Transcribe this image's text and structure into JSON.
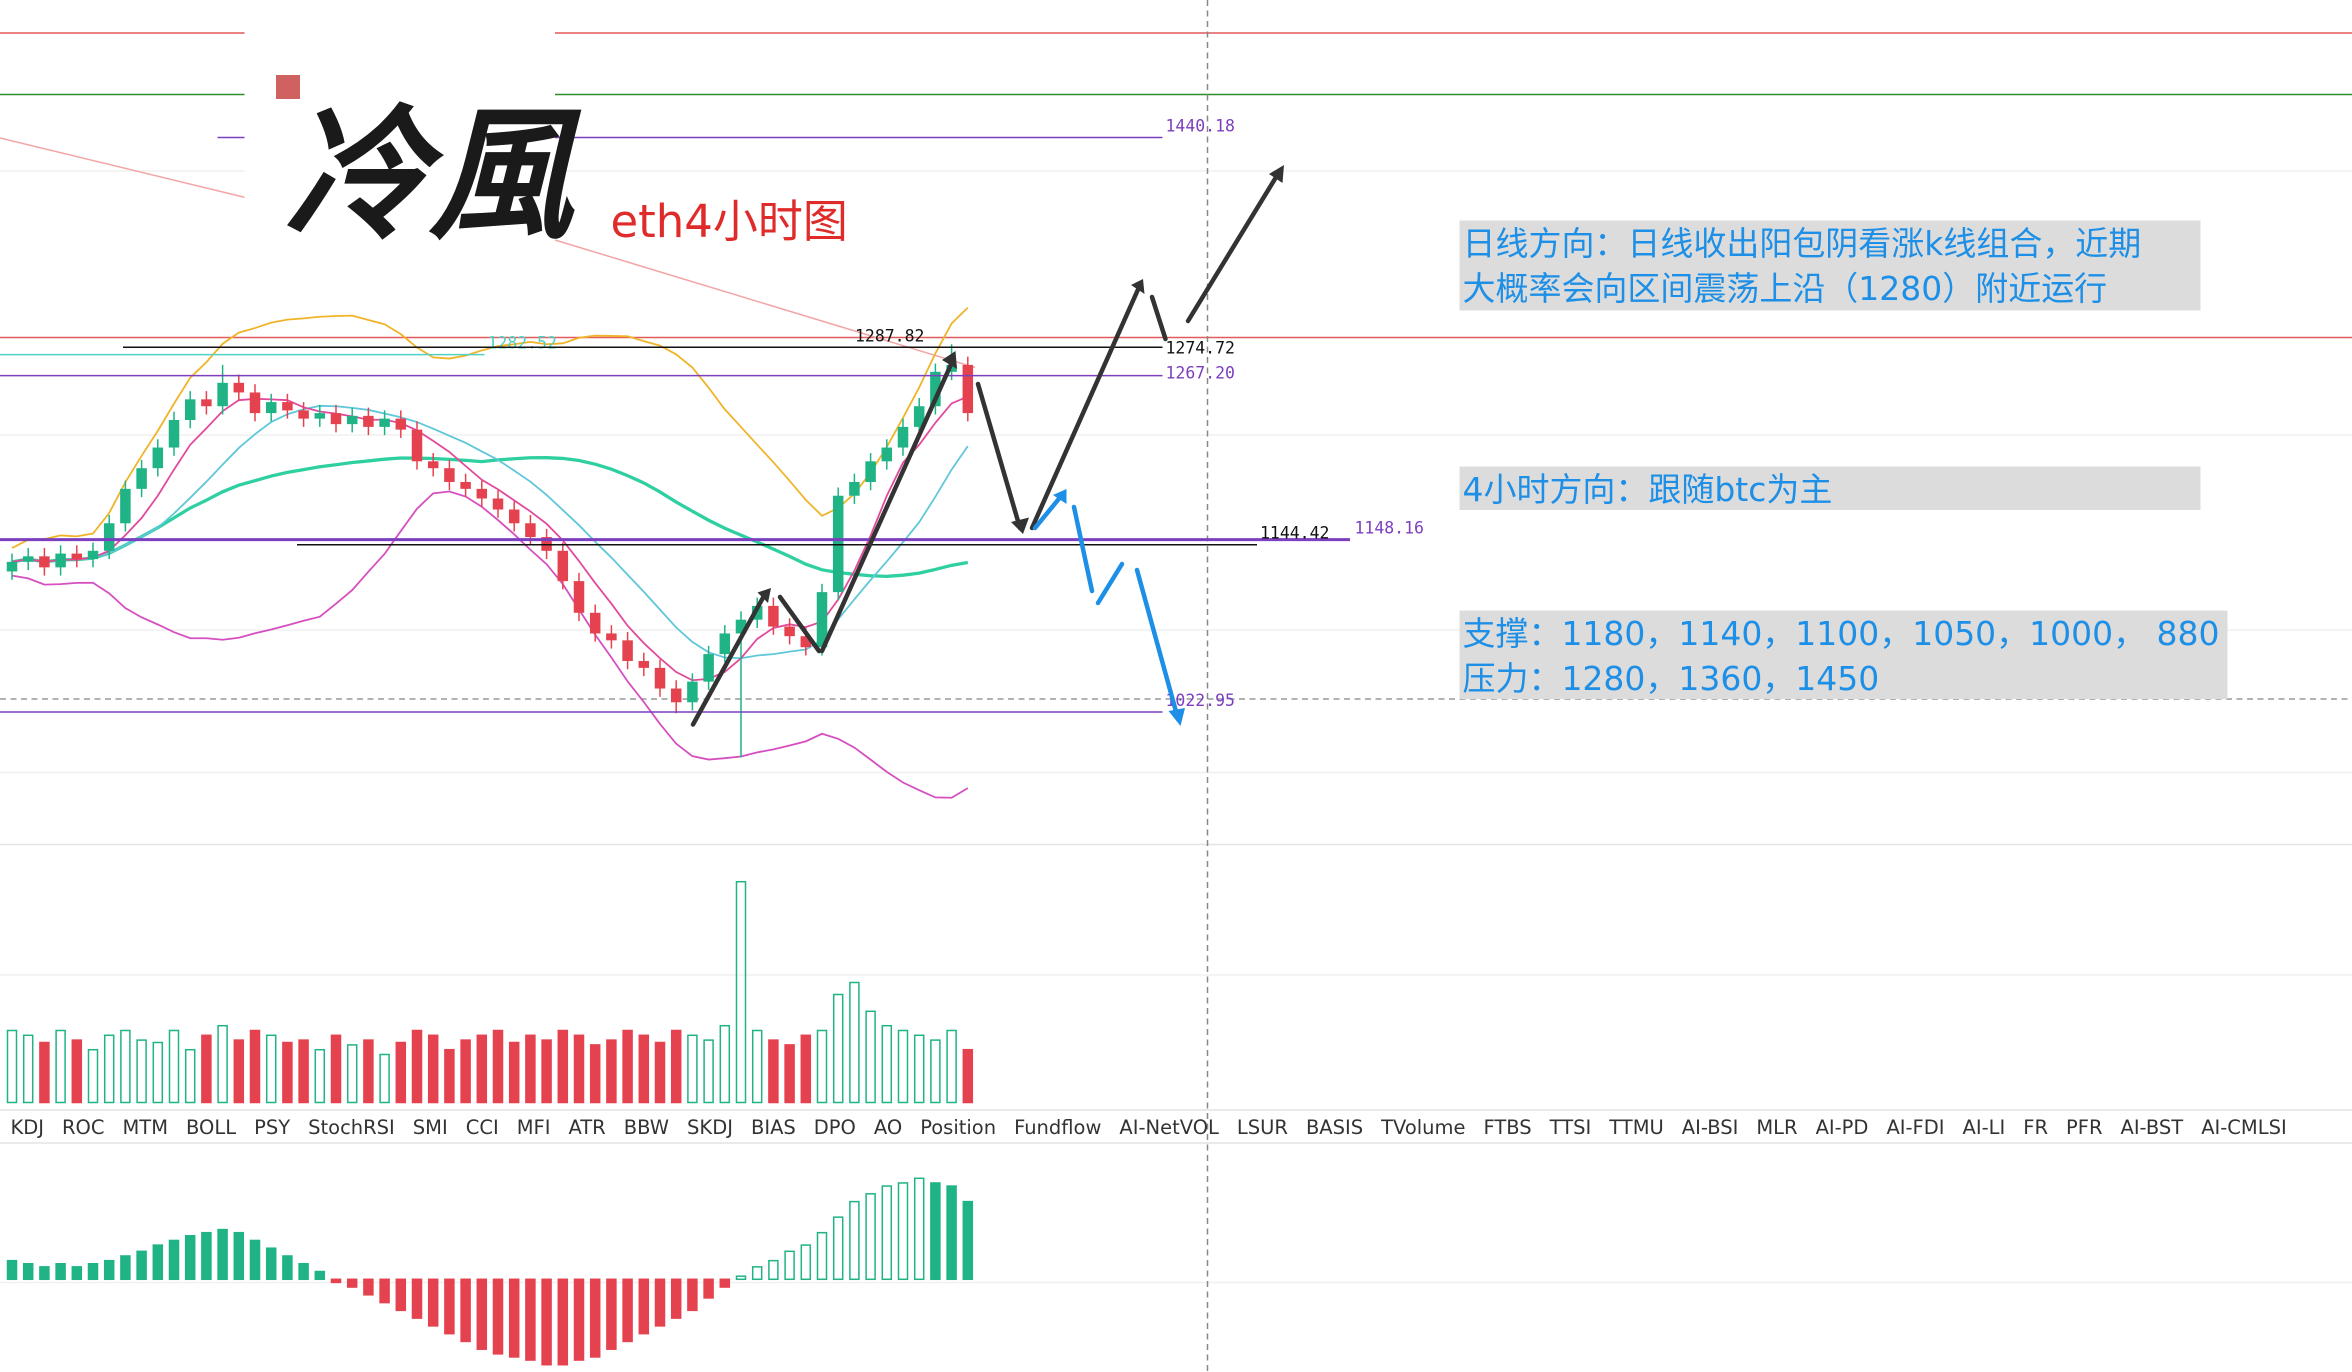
{
  "chart_data": {
    "type": "candlestick",
    "title": "eth4小时图",
    "logo": "冷風",
    "annotations": {
      "daily": [
        "日线方向：日线收出阳包阴看涨k线组合，近期",
        "大概率会向区间震荡上沿（1280）附近运行"
      ],
      "h4": "4小时方向：跟随btc为主",
      "support": "支撑：1180，1140，1100，1050，1000， 880",
      "resistance": "压力：1280，1360，1450"
    },
    "ylim": [
      930,
      1540
    ],
    "open": [
      1125,
      1132,
      1136,
      1128,
      1138,
      1134,
      1140,
      1160,
      1185,
      1200,
      1215,
      1235,
      1250,
      1245,
      1262,
      1255,
      1240,
      1248,
      1242,
      1236,
      1240,
      1232,
      1238,
      1230,
      1236,
      1228,
      1205,
      1200,
      1190,
      1185,
      1178,
      1170,
      1160,
      1150,
      1140,
      1118,
      1095,
      1080,
      1075,
      1060,
      1055,
      1040,
      1030,
      1045,
      1065,
      1080,
      1090,
      1100,
      1085,
      1078,
      1070,
      1110,
      1180,
      1190,
      1205,
      1215,
      1230,
      1245,
      1270,
      1275
    ],
    "high": [
      1138,
      1142,
      1142,
      1144,
      1144,
      1146,
      1166,
      1191,
      1206,
      1221,
      1241,
      1256,
      1256,
      1275,
      1268,
      1261,
      1254,
      1254,
      1248,
      1246,
      1246,
      1244,
      1244,
      1242,
      1242,
      1234,
      1211,
      1206,
      1196,
      1191,
      1184,
      1176,
      1166,
      1156,
      1146,
      1124,
      1101,
      1086,
      1081,
      1066,
      1061,
      1046,
      1051,
      1071,
      1086,
      1096,
      1106,
      1106,
      1091,
      1084,
      1116,
      1186,
      1196,
      1211,
      1221,
      1236,
      1251,
      1276,
      1290,
      1281
    ],
    "low": [
      1119,
      1126,
      1122,
      1122,
      1128,
      1128,
      1134,
      1154,
      1179,
      1194,
      1209,
      1229,
      1239,
      1239,
      1249,
      1234,
      1234,
      1236,
      1230,
      1230,
      1226,
      1226,
      1224,
      1224,
      1222,
      1199,
      1194,
      1184,
      1179,
      1172,
      1164,
      1154,
      1144,
      1134,
      1112,
      1089,
      1074,
      1069,
      1054,
      1049,
      1034,
      1022,
      1024,
      1039,
      1059,
      990,
      1084,
      1079,
      1072,
      1064,
      1064,
      1104,
      1174,
      1184,
      1199,
      1209,
      1224,
      1239,
      1264,
      1234
    ],
    "close": [
      1132,
      1136,
      1128,
      1138,
      1134,
      1140,
      1160,
      1185,
      1200,
      1215,
      1235,
      1250,
      1245,
      1262,
      1255,
      1240,
      1248,
      1242,
      1236,
      1240,
      1232,
      1238,
      1230,
      1236,
      1228,
      1205,
      1200,
      1190,
      1185,
      1178,
      1170,
      1160,
      1150,
      1140,
      1118,
      1095,
      1080,
      1075,
      1060,
      1055,
      1040,
      1030,
      1045,
      1065,
      1080,
      1090,
      1100,
      1085,
      1078,
      1070,
      1110,
      1180,
      1190,
      1205,
      1215,
      1230,
      1245,
      1270,
      1275,
      1240
    ],
    "volume_ylim": [
      0,
      100
    ],
    "volume": [
      30,
      28,
      25,
      30,
      26,
      22,
      28,
      30,
      26,
      25,
      30,
      22,
      28,
      32,
      26,
      30,
      28,
      25,
      26,
      22,
      28,
      24,
      26,
      20,
      25,
      30,
      28,
      22,
      26,
      28,
      30,
      25,
      28,
      26,
      30,
      28,
      24,
      26,
      30,
      28,
      25,
      30,
      28,
      26,
      32,
      92,
      30,
      26,
      24,
      28,
      30,
      45,
      50,
      38,
      32,
      30,
      28,
      26,
      30,
      22
    ],
    "macd_ylim": [
      -60,
      80
    ],
    "macd": [
      12,
      10,
      8,
      10,
      8,
      10,
      12,
      15,
      18,
      22,
      25,
      28,
      30,
      32,
      30,
      25,
      20,
      15,
      10,
      5,
      -2,
      -5,
      -10,
      -15,
      -20,
      -25,
      -30,
      -35,
      -40,
      -45,
      -48,
      -50,
      -52,
      -55,
      -55,
      -52,
      -50,
      -45,
      -40,
      -35,
      -30,
      -25,
      -20,
      -12,
      -5,
      2,
      8,
      12,
      18,
      22,
      30,
      40,
      50,
      55,
      60,
      62,
      65,
      62,
      60,
      50
    ],
    "up_color": "#1fb386",
    "down_color": "#e5424f",
    "price_labels": [
      {
        "value": 1440.18,
        "color": "#7b3fbf"
      },
      {
        "value": 1282.52,
        "color": "#4fd1c5"
      },
      {
        "value": 1287.82,
        "color": "#111111"
      },
      {
        "value": 1274.72,
        "color": "#111111"
      },
      {
        "value": {
          "value": 1267.2,
          "label": "1267.20"
        },
        "color": "#7b3fbf"
      },
      {
        "value": 1148.16,
        "color": "#7b3fbf"
      },
      {
        "value": 1144.42,
        "color": "#111111"
      },
      {
        "value": 1022.95,
        "color": "#7b3fbf"
      }
    ],
    "tabs": [
      {
        "name": "KDJ"
      },
      {
        "name": "ROC"
      },
      {
        "name": "MTM"
      },
      {
        "name": "BOLL"
      },
      {
        "name": "PSY"
      },
      {
        "name": "StochRSI"
      },
      {
        "name": "SMI"
      },
      {
        "name": "CCI"
      },
      {
        "name": "MFI"
      },
      {
        "name": "ATR"
      },
      {
        "name": "BBW"
      },
      {
        "name": "SKDJ"
      },
      {
        "name": "BIAS"
      },
      {
        "name": "DPO"
      },
      {
        "name": "AO"
      },
      {
        "name": "Position"
      },
      {
        "name": "Fundflow"
      },
      {
        "name": "AI-NetVOL",
        "muted": true
      },
      {
        "name": "LSUR"
      },
      {
        "name": "BASIS"
      },
      {
        "name": "TVolume"
      },
      {
        "name": "FTBS"
      },
      {
        "name": "TTSI"
      },
      {
        "name": "TTMU"
      },
      {
        "name": "AI-BSI",
        "muted": true
      },
      {
        "name": "MLR"
      },
      {
        "name": "AI-PD",
        "muted": true
      },
      {
        "name": "AI-FDI",
        "muted": true
      },
      {
        "name": "AI-LI",
        "muted": true
      },
      {
        "name": "FR"
      },
      {
        "name": "PFR"
      },
      {
        "name": "AI-BST",
        "muted": true
      },
      {
        "name": "AI-CMLSI",
        "muted": true
      }
    ]
  }
}
